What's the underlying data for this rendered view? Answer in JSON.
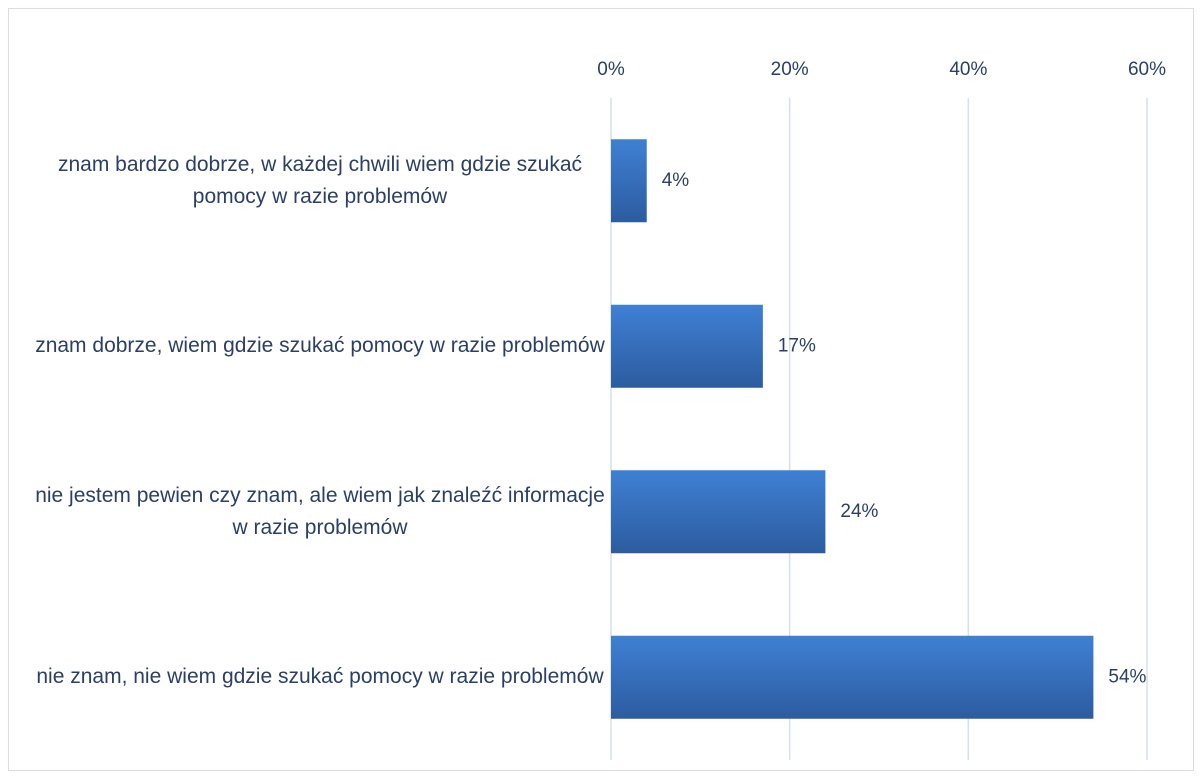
{
  "chart_data": {
    "type": "bar",
    "orientation": "horizontal",
    "categories": [
      "znam bardzo dobrze, w każdej chwili wiem gdzie szukać pomocy w razie problemów",
      "znam dobrze, wiem gdzie szukać pomocy w razie problemów",
      "nie jestem pewien czy znam, ale wiem jak znaleźć informacje w razie problemów",
      "nie znam, nie wiem gdzie szukać pomocy w razie problemów"
    ],
    "values": [
      4,
      17,
      24,
      54
    ],
    "value_labels": [
      "4%",
      "17%",
      "24%",
      "54%"
    ],
    "color": "#3a76c8",
    "xlim": [
      0,
      60
    ],
    "xticks": [
      {
        "value": 0,
        "label": "0%"
      },
      {
        "value": 20,
        "label": "20%"
      },
      {
        "value": 40,
        "label": "40%"
      },
      {
        "value": 60,
        "label": "60%"
      }
    ],
    "grid": true
  }
}
